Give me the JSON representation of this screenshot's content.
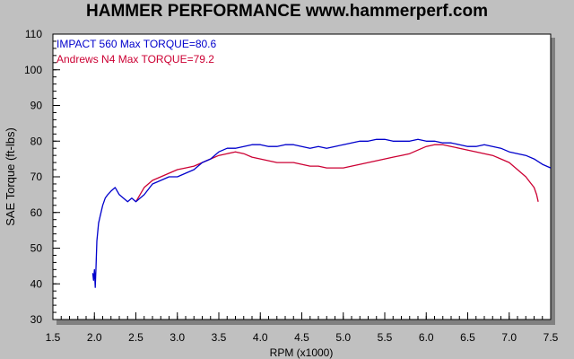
{
  "chart_data": {
    "type": "line",
    "title": "HAMMER PERFORMANCE www.hammerperf.com",
    "xlabel": "RPM (x1000)",
    "ylabel": "SAE Torque (ft-lbs)",
    "xlim": [
      1.5,
      7.5
    ],
    "ylim": [
      30,
      110
    ],
    "xticks": [
      "1.5",
      "2.0",
      "2.5",
      "3.0",
      "3.5",
      "4.0",
      "4.5",
      "5.0",
      "5.5",
      "6.0",
      "6.5",
      "7.0",
      "7.5"
    ],
    "yticks": [
      "30",
      "40",
      "50",
      "60",
      "70",
      "80",
      "90",
      "100",
      "110"
    ],
    "grid": false,
    "legend_position": "top-left",
    "series": [
      {
        "name": "IMPACT 560",
        "legend_text": "IMPACT 560  Max TORQUE=80.6",
        "color": "#0000cc",
        "x": [
          1.98,
          1.99,
          2.0,
          2.01,
          2.02,
          2.03,
          2.05,
          2.07,
          2.1,
          2.13,
          2.16,
          2.2,
          2.25,
          2.3,
          2.35,
          2.4,
          2.45,
          2.5,
          2.6,
          2.7,
          2.8,
          2.9,
          3.0,
          3.1,
          3.2,
          3.3,
          3.4,
          3.5,
          3.6,
          3.7,
          3.8,
          3.9,
          4.0,
          4.1,
          4.2,
          4.3,
          4.4,
          4.5,
          4.6,
          4.7,
          4.8,
          4.9,
          5.0,
          5.1,
          5.2,
          5.3,
          5.4,
          5.5,
          5.6,
          5.7,
          5.8,
          5.9,
          6.0,
          6.1,
          6.2,
          6.3,
          6.4,
          6.5,
          6.6,
          6.7,
          6.8,
          6.9,
          7.0,
          7.1,
          7.2,
          7.3,
          7.4,
          7.5
        ],
        "y": [
          43,
          41,
          44,
          39,
          45,
          52,
          57,
          59,
          62,
          64,
          65,
          66,
          67,
          65,
          64,
          63,
          64,
          63,
          65,
          68,
          69,
          70,
          70,
          71,
          72,
          74,
          75,
          77,
          78,
          78,
          78.5,
          79,
          79,
          78.5,
          78.5,
          79,
          79,
          78.5,
          78,
          78.5,
          78,
          78.5,
          79,
          79.5,
          80,
          80,
          80.5,
          80.5,
          80,
          80,
          80,
          80.5,
          80,
          80,
          79.5,
          79.5,
          79,
          78.5,
          78.5,
          79,
          78.5,
          78,
          77,
          76.5,
          76,
          75,
          73.5,
          72.5
        ]
      },
      {
        "name": "Andrews N4",
        "legend_text": "Andrews N4  Max TORQUE=79.2",
        "color": "#cc0033",
        "x": [
          2.5,
          2.55,
          2.6,
          2.7,
          2.8,
          2.9,
          3.0,
          3.1,
          3.2,
          3.3,
          3.4,
          3.5,
          3.6,
          3.7,
          3.8,
          3.9,
          4.0,
          4.1,
          4.2,
          4.3,
          4.4,
          4.5,
          4.6,
          4.7,
          4.8,
          4.9,
          5.0,
          5.1,
          5.2,
          5.3,
          5.4,
          5.5,
          5.6,
          5.7,
          5.8,
          5.9,
          6.0,
          6.1,
          6.2,
          6.3,
          6.4,
          6.5,
          6.6,
          6.7,
          6.8,
          6.9,
          7.0,
          7.1,
          7.2,
          7.25,
          7.3,
          7.33,
          7.35
        ],
        "y": [
          63,
          65,
          67,
          69,
          70,
          71,
          72,
          72.5,
          73,
          74,
          75,
          76,
          76.5,
          77,
          76.5,
          75.5,
          75,
          74.5,
          74,
          74,
          74,
          73.5,
          73,
          73,
          72.5,
          72.5,
          72.5,
          73,
          73.5,
          74,
          74.5,
          75,
          75.5,
          76,
          76.5,
          77.5,
          78.5,
          79,
          79,
          78.5,
          78,
          77.5,
          77,
          76.5,
          76,
          75,
          74,
          72,
          70,
          68.5,
          67,
          65,
          63
        ]
      }
    ]
  }
}
